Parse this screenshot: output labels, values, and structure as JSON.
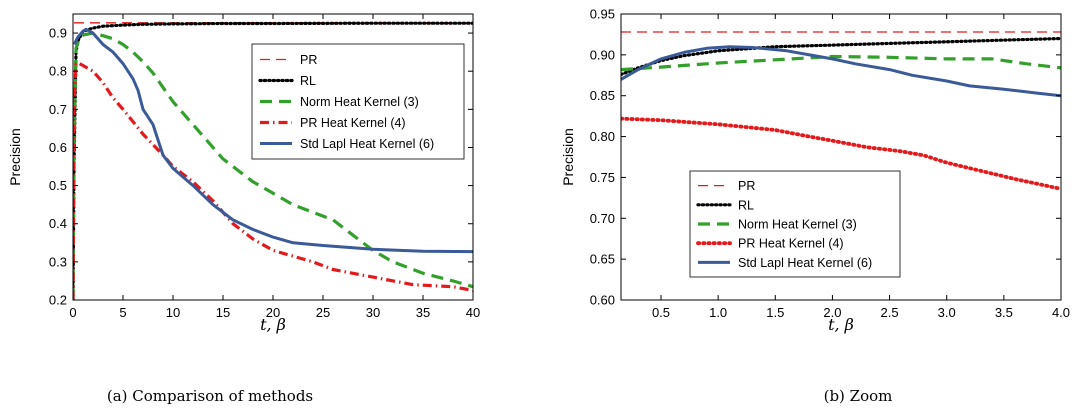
{
  "chart_data": [
    {
      "type": "line",
      "xlabel": "t, β",
      "ylabel": "Precision",
      "caption": "(a)  Comparison of methods",
      "xlim": [
        0,
        40
      ],
      "ylim": [
        0.2,
        0.95
      ],
      "xticks": [
        0,
        5,
        10,
        15,
        20,
        25,
        30,
        35,
        40
      ],
      "xtick_labels": [
        "0",
        "5",
        "10",
        "15",
        "20",
        "25",
        "30",
        "35",
        "40"
      ],
      "yticks": [
        0.2,
        0.3,
        0.4,
        0.5,
        0.6,
        0.7,
        0.8,
        0.9
      ],
      "ytick_labels": [
        "0.2",
        "0.3",
        "0.4",
        "0.5",
        "0.6",
        "0.7",
        "0.8",
        "0.9"
      ],
      "legend_position": "top-right",
      "series": [
        {
          "name": "PR",
          "color": "#e31a1c",
          "style": "dashed",
          "x": [
            0.1,
            40
          ],
          "y": [
            0.927,
            0.927
          ]
        },
        {
          "name": "RL",
          "color": "#000000",
          "style": "dotted",
          "x": [
            0,
            0.1,
            0.3,
            0.5,
            1,
            2,
            3,
            5,
            7,
            10,
            15,
            20,
            30,
            40
          ],
          "y": [
            0.2,
            0.55,
            0.85,
            0.88,
            0.905,
            0.913,
            0.918,
            0.921,
            0.923,
            0.924,
            0.925,
            0.925,
            0.926,
            0.926
          ]
        },
        {
          "name": "Norm Heat Kernel (3)",
          "color": "#33a02c",
          "style": "dashed",
          "x": [
            0,
            0.1,
            0.3,
            0.6,
            1,
            2,
            3,
            4,
            5,
            6,
            7,
            8,
            10,
            12,
            15,
            18,
            20,
            22,
            24,
            26,
            28,
            30,
            32,
            35,
            38,
            40
          ],
          "y": [
            0.2,
            0.6,
            0.86,
            0.885,
            0.895,
            0.9,
            0.893,
            0.885,
            0.87,
            0.85,
            0.825,
            0.795,
            0.72,
            0.66,
            0.57,
            0.51,
            0.48,
            0.45,
            0.43,
            0.41,
            0.37,
            0.33,
            0.3,
            0.27,
            0.25,
            0.235
          ]
        },
        {
          "name": "PR Heat Kernel (4)",
          "color": "#e31a1c",
          "style": "dashdot",
          "x": [
            0,
            0.1,
            0.3,
            0.5,
            1,
            2,
            3,
            4,
            5,
            7,
            9,
            10,
            12,
            14,
            16,
            18,
            20,
            24,
            26,
            30,
            34,
            38,
            40
          ],
          "y": [
            0.2,
            0.7,
            0.82,
            0.822,
            0.815,
            0.8,
            0.77,
            0.73,
            0.7,
            0.635,
            0.58,
            0.55,
            0.51,
            0.46,
            0.4,
            0.36,
            0.33,
            0.3,
            0.28,
            0.26,
            0.24,
            0.235,
            0.225
          ]
        },
        {
          "name": "Std Lapl Heat Kernel (6)",
          "color": "#3a5a98",
          "style": "solid",
          "x": [
            0.15,
            0.3,
            0.5,
            1,
            1.3,
            2,
            3,
            4,
            5,
            6,
            6.5,
            7,
            8,
            9,
            10,
            12,
            14,
            16,
            18,
            20,
            22,
            25,
            28,
            30,
            35,
            40
          ],
          "y": [
            0.87,
            0.88,
            0.89,
            0.905,
            0.91,
            0.9,
            0.87,
            0.85,
            0.82,
            0.78,
            0.75,
            0.7,
            0.66,
            0.58,
            0.545,
            0.5,
            0.45,
            0.41,
            0.385,
            0.365,
            0.35,
            0.343,
            0.337,
            0.333,
            0.328,
            0.327
          ]
        }
      ]
    },
    {
      "type": "line",
      "xlabel": "t, β",
      "ylabel": "Precision",
      "caption": "(b)  Zoom",
      "xlim": [
        0.15,
        4.0
      ],
      "ylim": [
        0.6,
        0.95
      ],
      "xticks": [
        0.5,
        1.0,
        1.5,
        2.0,
        2.5,
        3.0,
        3.5,
        4.0
      ],
      "xtick_labels": [
        "0.5",
        "1.0",
        "1.5",
        "2.0",
        "2.5",
        "3.0",
        "3.5",
        "4.0"
      ],
      "yticks": [
        0.6,
        0.65,
        0.7,
        0.75,
        0.8,
        0.85,
        0.9,
        0.95
      ],
      "ytick_labels": [
        "0.60",
        "0.65",
        "0.70",
        "0.75",
        "0.80",
        "0.85",
        "0.90",
        "0.95"
      ],
      "legend_position": "lower-left",
      "series": [
        {
          "name": "PR",
          "color": "#e31a1c",
          "style": "dashed",
          "x": [
            0.15,
            4.0
          ],
          "y": [
            0.928,
            0.928
          ]
        },
        {
          "name": "RL",
          "color": "#000000",
          "style": "dotted",
          "x": [
            0.15,
            0.3,
            0.5,
            0.7,
            1.0,
            1.5,
            2.0,
            2.5,
            3.0,
            3.5,
            4.0
          ],
          "y": [
            0.876,
            0.884,
            0.893,
            0.899,
            0.905,
            0.91,
            0.912,
            0.914,
            0.916,
            0.918,
            0.92
          ]
        },
        {
          "name": "Norm Heat Kernel (3)",
          "color": "#33a02c",
          "style": "dashed",
          "x": [
            0.15,
            0.5,
            1.0,
            1.5,
            2.0,
            2.5,
            3.0,
            3.4,
            3.7,
            4.0
          ],
          "y": [
            0.882,
            0.885,
            0.89,
            0.894,
            0.898,
            0.897,
            0.895,
            0.895,
            0.889,
            0.884
          ]
        },
        {
          "name": "PR Heat Kernel (4)",
          "color": "#e31a1c",
          "style": "dotted-heavy",
          "x": [
            0.15,
            0.5,
            0.8,
            1.0,
            1.5,
            1.8,
            2.0,
            2.3,
            2.6,
            2.8,
            3.0,
            3.3,
            3.6,
            4.0
          ],
          "y": [
            0.822,
            0.82,
            0.817,
            0.815,
            0.808,
            0.8,
            0.795,
            0.787,
            0.782,
            0.777,
            0.768,
            0.758,
            0.748,
            0.736
          ]
        },
        {
          "name": "Std Lapl Heat Kernel (6)",
          "color": "#3a5a98",
          "style": "solid",
          "x": [
            0.15,
            0.3,
            0.5,
            0.7,
            0.9,
            1.1,
            1.3,
            1.6,
            1.8,
            2.0,
            2.2,
            2.5,
            2.7,
            3.0,
            3.2,
            3.5,
            3.8,
            4.0
          ],
          "y": [
            0.87,
            0.882,
            0.895,
            0.903,
            0.908,
            0.91,
            0.909,
            0.905,
            0.9,
            0.895,
            0.889,
            0.882,
            0.875,
            0.868,
            0.862,
            0.858,
            0.853,
            0.85
          ]
        }
      ]
    }
  ]
}
